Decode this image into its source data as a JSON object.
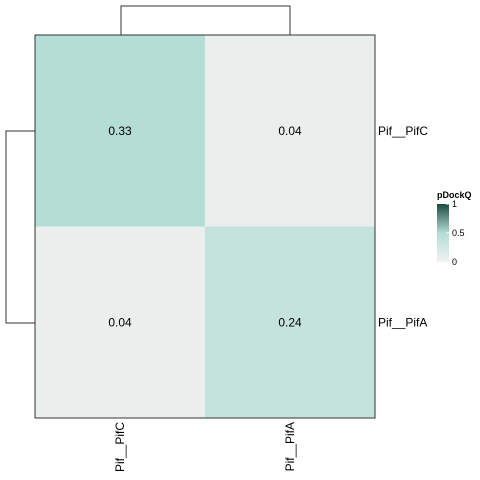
{
  "chart_data": {
    "type": "heatmap",
    "title": "",
    "xlabel": "",
    "ylabel": "",
    "columns": [
      "Pif__PifC",
      "Pif__PifA"
    ],
    "rows": [
      "Pif__PifC",
      "Pif__PifA"
    ],
    "values": [
      [
        0.33,
        0.04
      ],
      [
        0.04,
        0.24
      ]
    ],
    "value_labels": [
      [
        "0.33",
        "0.04"
      ],
      [
        "0.04",
        "0.24"
      ]
    ],
    "legend": {
      "title": "pDockQ",
      "ticks": [
        {
          "value": 1,
          "label": "1"
        },
        {
          "value": 0.5,
          "label": "0.5"
        },
        {
          "value": 0,
          "label": "0"
        }
      ],
      "range": [
        0,
        1
      ],
      "placement": "right"
    },
    "colors": {
      "low": "#f2f2f2",
      "mid": "#b3ddd5",
      "high": "#1b4a40"
    },
    "dendrograms": {
      "rows": true,
      "columns": true
    }
  }
}
